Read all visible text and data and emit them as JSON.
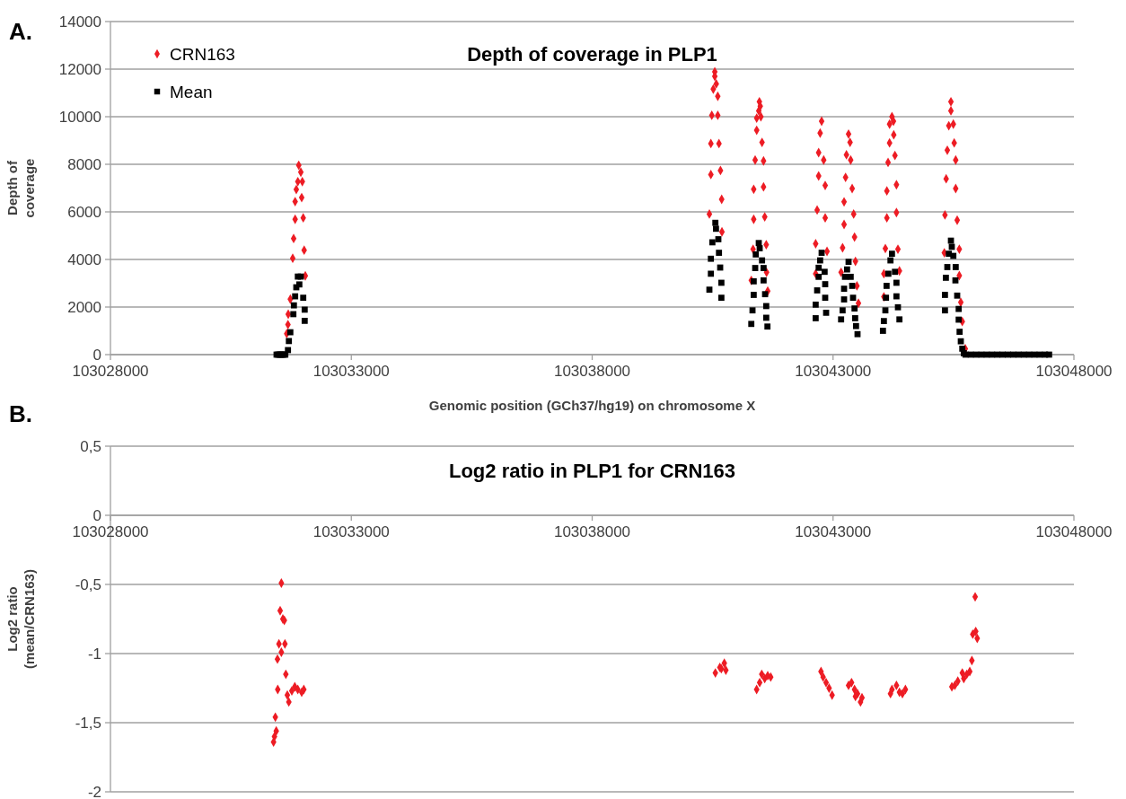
{
  "chart_data": [
    {
      "type": "scatter",
      "title": "Depth of coverage in PLP1",
      "xlabel": "Genomic position (GCh37/hg19) on chromosome X",
      "ylabel": "Depth of coverage",
      "annotations": [
        "A."
      ],
      "xlim": [
        103028000,
        103048000
      ],
      "xticks": [
        103028000,
        103033000,
        103038000,
        103043000,
        103048000
      ],
      "ylim": [
        0,
        14000
      ],
      "yticks": [
        0,
        2000,
        4000,
        6000,
        8000,
        10000,
        12000,
        14000
      ],
      "grid": "y",
      "legend": "top left",
      "series": [
        {
          "name": "CRN163",
          "color": "#ed1c24",
          "marker": "diamond",
          "x": [
            103031909,
            103031952,
            103031890,
            103031983,
            103031858,
            103031970,
            103031834,
            103031834,
            103032002,
            103031803,
            103032021,
            103031784,
            103032045,
            103031734,
            103031691,
            103031685,
            103031659,
            103040545,
            103040545,
            103040576,
            103040514,
            103040607,
            103040483,
            103040607,
            103040464,
            103040632,
            103040464,
            103040663,
            103040688,
            103040433,
            103040694,
            103041471,
            103041489,
            103041458,
            103041415,
            103041502,
            103041415,
            103041526,
            103041383,
            103041557,
            103041353,
            103041557,
            103041353,
            103041582,
            103041613,
            103041340,
            103041620,
            103041303,
            103041644,
            103042763,
            103042732,
            103042701,
            103042806,
            103042701,
            103042837,
            103042670,
            103042837,
            103042639,
            103042875,
            103042639,
            103043322,
            103043353,
            103043278,
            103043366,
            103043260,
            103043397,
            103043229,
            103043428,
            103043229,
            103043446,
            103043198,
            103043465,
            103043167,
            103043496,
            103043527,
            103044223,
            103044254,
            103044173,
            103044260,
            103044173,
            103044285,
            103044142,
            103044316,
            103044117,
            103044316,
            103044117,
            103044347,
            103044086,
            103044378,
            103044055,
            103044055,
            103045447,
            103045447,
            103045497,
            103045403,
            103045515,
            103045372,
            103045546,
            103045348,
            103045546,
            103045323,
            103045577,
            103045621,
            103045310,
            103045621,
            103045652,
            103045683,
            103045745
          ],
          "values": [
            7960,
            7670,
            7270,
            7270,
            6940,
            6600,
            6430,
            5690,
            5750,
            4880,
            4390,
            4050,
            3310,
            2330,
            1700,
            1260,
            880,
            11890,
            11700,
            11380,
            11160,
            10860,
            10060,
            10060,
            8870,
            8870,
            7570,
            7740,
            6530,
            5910,
            5160,
            10630,
            10440,
            10250,
            9940,
            10000,
            9430,
            8920,
            8180,
            8140,
            6950,
            7050,
            5690,
            5790,
            4620,
            4430,
            3460,
            3120,
            2670,
            9810,
            9310,
            8490,
            8180,
            7510,
            7110,
            6080,
            5750,
            4660,
            4340,
            3400,
            9270,
            8920,
            8400,
            8180,
            7450,
            6980,
            6420,
            5910,
            5470,
            4940,
            4490,
            3920,
            3460,
            2890,
            2160,
            10000,
            9810,
            9690,
            9240,
            8900,
            8370,
            8080,
            7140,
            6880,
            5970,
            5750,
            4430,
            4460,
            3520,
            3400,
            2430,
            10630,
            10250,
            9690,
            9620,
            8900,
            8590,
            8180,
            7390,
            6980,
            5870,
            5650,
            4430,
            4280,
            3320,
            2200,
            1390,
            250
          ]
        },
        {
          "name": "Mean",
          "color": "#000000",
          "marker": "square",
          "x": [
            103031448,
            103031480,
            103031510,
            103031540,
            103031570,
            103031600,
            103031630,
            103031685,
            103031704,
            103031734,
            103031797,
            103031808,
            103031834,
            103031858,
            103031890,
            103031921,
            103031952,
            103032002,
            103032032,
            103032032,
            103040557,
            103040570,
            103040495,
            103040619,
            103040632,
            103040464,
            103040657,
            103040464,
            103040682,
            103040433,
            103040682,
            103041458,
            103041477,
            103041396,
            103041526,
            103041384,
            103041558,
            103041353,
            103041558,
            103041353,
            103041589,
            103041328,
            103041613,
            103041303,
            103041613,
            103041638,
            103042763,
            103042732,
            103042701,
            103042825,
            103042701,
            103042837,
            103042670,
            103042837,
            103042639,
            103042856,
            103042639,
            103043322,
            103043291,
            103043366,
            103043248,
            103043397,
            103043229,
            103043415,
            103043229,
            103043446,
            103043198,
            103043459,
            103043167,
            103043477,
            103043508,
            103044223,
            103044192,
            103044285,
            103044148,
            103044316,
            103044111,
            103044316,
            103044099,
            103044347,
            103044086,
            103044378,
            103044055,
            103044036,
            103045447,
            103045465,
            103045403,
            103045497,
            103045372,
            103045546,
            103045342,
            103045540,
            103045323,
            103045577,
            103045323,
            103045608,
            103045608,
            103045627,
            103045652,
            103045683,
            103045714,
            103045750,
            103045860,
            103045970,
            103046080,
            103046190,
            103046300,
            103046410,
            103046520,
            103046630,
            103046740,
            103046850,
            103046960,
            103047070,
            103047180,
            103047290,
            103047400,
            103047485
          ],
          "values": [
            0,
            0,
            0,
            0,
            0,
            0,
            0,
            190,
            570,
            940,
            1700,
            2070,
            2450,
            2830,
            3280,
            2950,
            3280,
            2390,
            1890,
            1420,
            5540,
            5290,
            4720,
            4850,
            4280,
            4030,
            3660,
            3400,
            3020,
            2730,
            2390,
            4690,
            4470,
            4210,
            3960,
            3640,
            3640,
            3080,
            3120,
            2510,
            2540,
            1860,
            2040,
            1290,
            1550,
            1180,
            4280,
            3960,
            3650,
            3480,
            3270,
            2960,
            2700,
            2390,
            2100,
            1760,
            1530,
            3900,
            3580,
            3270,
            3270,
            2890,
            2770,
            2390,
            2320,
            1940,
            1860,
            1530,
            1480,
            1200,
            860,
            4240,
            3960,
            3480,
            3400,
            3020,
            2890,
            2450,
            2390,
            1990,
            1860,
            1480,
            1410,
            1000,
            4790,
            4530,
            4240,
            4150,
            3680,
            3680,
            3230,
            3120,
            2510,
            2480,
            1860,
            1920,
            1470,
            960,
            560,
            250,
            60,
            0,
            0,
            0,
            0,
            0,
            0,
            0,
            0,
            0,
            0,
            0,
            0,
            0,
            0,
            0,
            0,
            0
          ]
        }
      ]
    },
    {
      "type": "scatter",
      "title": "Log2 ratio in PLP1 for CRN163",
      "ylabel": "Log2 ratio (mean/CRN163)",
      "annotations": [
        "B."
      ],
      "xlim": [
        103028000,
        103048000
      ],
      "xticks": [
        103028000,
        103033000,
        103038000,
        103043000,
        103048000
      ],
      "ylim": [
        -2,
        0.5
      ],
      "yticks": [
        {
          "value": -2,
          "label": "-2"
        },
        {
          "value": -1.5,
          "label": "-1,5"
        },
        {
          "value": -1,
          "label": "-1"
        },
        {
          "value": -0.5,
          "label": "-0,5"
        },
        {
          "value": 0,
          "label": "0"
        },
        {
          "value": 0.5,
          "label": "0,5"
        }
      ],
      "grid": "y",
      "series": [
        {
          "color": "#ed1c24",
          "marker": "diamond",
          "x": [
            103031548,
            103031523,
            103031579,
            103031610,
            103031498,
            103031622,
            103031548,
            103031467,
            103031641,
            103031473,
            103031672,
            103031703,
            103031827,
            103031765,
            103031889,
            103032014,
            103031970,
            103031423,
            103031442,
            103031405,
            103031386,
            103040743,
            103040650,
            103040557,
            103040775,
            103040681,
            103041520,
            103041706,
            103041582,
            103041477,
            103041414,
            103041644,
            103042750,
            103042794,
            103042856,
            103042918,
            103042980,
            103043322,
            103043384,
            103043446,
            103043508,
            103043601,
            103043570,
            103043465,
            103044223,
            103044316,
            103044378,
            103044502,
            103044440,
            103044192,
            103045950,
            103045962,
            103045900,
            103045993,
            103045882,
            103045838,
            103045776,
            103045683,
            103045714,
            103045590,
            103045528,
            103045466
          ],
          "values": [
            -0.49,
            -0.69,
            -0.75,
            -0.76,
            -0.93,
            -0.93,
            -0.99,
            -1.04,
            -1.15,
            -1.26,
            -1.3,
            -1.35,
            -1.24,
            -1.27,
            -1.26,
            -1.26,
            -1.28,
            -1.46,
            -1.56,
            -1.6,
            -1.64,
            -1.07,
            -1.1,
            -1.14,
            -1.12,
            -1.11,
            -1.15,
            -1.17,
            -1.18,
            -1.21,
            -1.26,
            -1.16,
            -1.13,
            -1.17,
            -1.21,
            -1.25,
            -1.3,
            -1.23,
            -1.21,
            -1.26,
            -1.29,
            -1.32,
            -1.35,
            -1.31,
            -1.26,
            -1.23,
            -1.28,
            -1.26,
            -1.29,
            -1.29,
            -0.59,
            -0.84,
            -0.86,
            -0.89,
            -1.05,
            -1.13,
            -1.15,
            -1.14,
            -1.18,
            -1.2,
            -1.23,
            -1.24
          ]
        }
      ]
    }
  ]
}
